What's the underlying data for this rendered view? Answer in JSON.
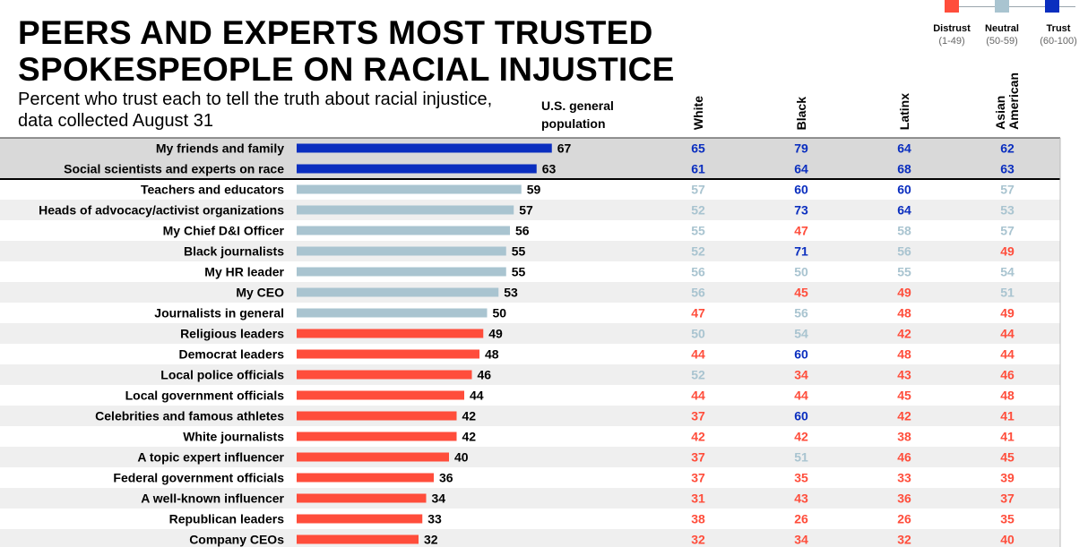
{
  "title_line1": "PEERS AND EXPERTS MOST TRUSTED",
  "title_line2": "SPOKESPEOPLE ON RACIAL INJUSTICE",
  "subtitle_line1": "Percent who trust each to tell the truth about racial injustice,",
  "subtitle_line2": "data collected August 31",
  "general_header_line1": "U.S. general",
  "general_header_line2": "population",
  "legend": [
    {
      "label": "Distrust",
      "range": "(1-49)",
      "color": "#ff4d3b"
    },
    {
      "label": "Neutral",
      "range": "(50-59)",
      "color": "#a9c4d0"
    },
    {
      "label": "Trust",
      "range": "(60-100)",
      "color": "#0a2ebf"
    }
  ],
  "colors": {
    "distrust": "#ff4d3b",
    "neutral": "#a9c4d0",
    "trust": "#0a2ebf",
    "highlight_row": "#d9d9d9",
    "alt_row": "#efefef"
  },
  "chart_data": {
    "type": "bar",
    "orientation": "horizontal",
    "title": "PEERS AND EXPERTS MOST TRUSTED SPOKESPEOPLE ON RACIAL INJUSTICE",
    "subtitle": "Percent who trust each to tell the truth about racial injustice, data collected August 31",
    "xlim": [
      0,
      100
    ],
    "categories": [
      "My friends and family",
      "Social scientists and experts on race",
      "Teachers and educators",
      "Heads of advocacy/activist organizations",
      "My Chief D&I Officer",
      "Black journalists",
      "My HR leader",
      "My CEO",
      "Journalists in general",
      "Religious leaders",
      "Democrat leaders",
      "Local police officials",
      "Local government officials",
      "Celebrities and famous athletes",
      "White journalists",
      "A topic expert influencer",
      "Federal government officials",
      "A well-known influencer",
      "Republican leaders",
      "Company CEOs"
    ],
    "series": [
      {
        "name": "U.S. general population",
        "values": [
          67,
          63,
          59,
          57,
          56,
          55,
          55,
          53,
          50,
          49,
          48,
          46,
          44,
          42,
          42,
          40,
          36,
          34,
          33,
          32
        ]
      },
      {
        "name": "White",
        "values": [
          65,
          61,
          57,
          52,
          55,
          52,
          56,
          56,
          47,
          50,
          44,
          52,
          44,
          37,
          42,
          37,
          37,
          31,
          38,
          32
        ]
      },
      {
        "name": "Black",
        "values": [
          79,
          64,
          60,
          73,
          47,
          71,
          50,
          45,
          56,
          54,
          60,
          34,
          44,
          60,
          42,
          51,
          35,
          43,
          26,
          34
        ]
      },
      {
        "name": "Latinx",
        "values": [
          64,
          68,
          60,
          64,
          58,
          56,
          55,
          49,
          48,
          42,
          48,
          43,
          45,
          42,
          38,
          46,
          33,
          36,
          26,
          32
        ]
      },
      {
        "name": "Asian\nAmerican",
        "values": [
          62,
          63,
          57,
          53,
          57,
          49,
          54,
          51,
          49,
          44,
          44,
          46,
          48,
          41,
          41,
          45,
          39,
          37,
          35,
          40
        ]
      }
    ],
    "highlighted_rows": 2
  }
}
